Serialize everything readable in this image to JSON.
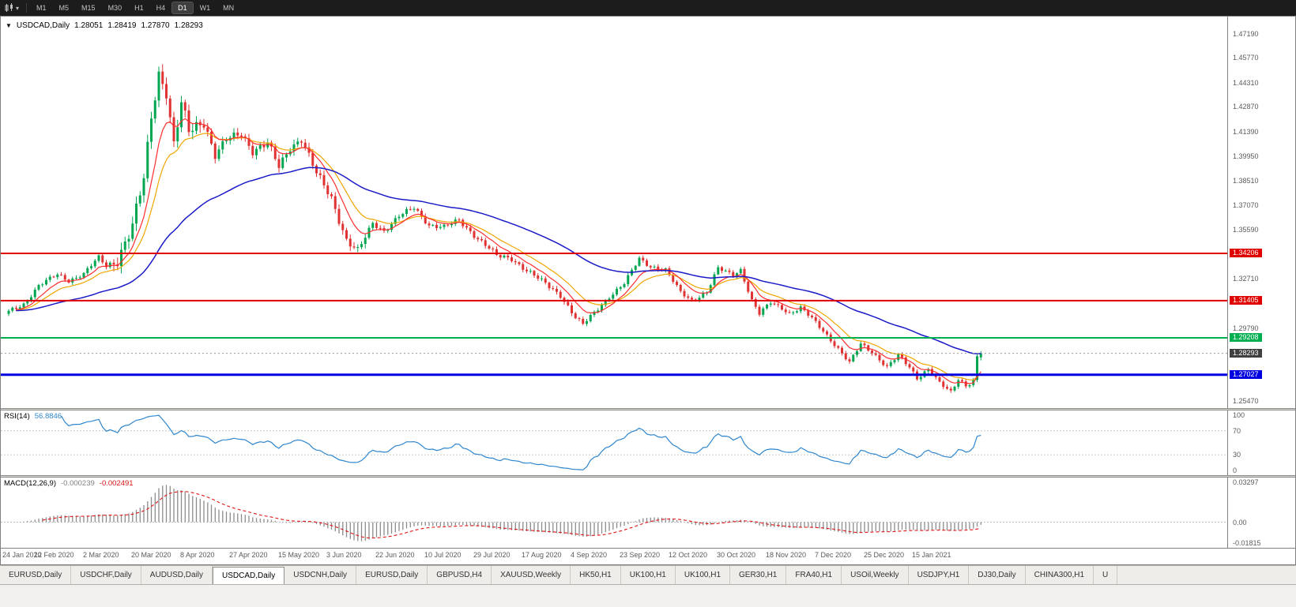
{
  "toolbar": {
    "timeframes": [
      "M1",
      "M5",
      "M15",
      "M30",
      "H1",
      "H4",
      "D1",
      "W1",
      "MN"
    ],
    "active_timeframe": "D1"
  },
  "chart_data": {
    "type": "candlestick",
    "title": "USDCAD,Daily",
    "ohlc_display": {
      "open": "1.28051",
      "high": "1.28419",
      "low": "1.27870",
      "close": "1.28293"
    },
    "last_candle": {
      "open": 1.28051,
      "high": 1.28419,
      "low": 1.2787,
      "close": 1.28293
    },
    "bars": 260,
    "bars_per_x_label": 13,
    "up_color": "#00A650",
    "down_color": "#E03232",
    "ma_lines": [
      {
        "name": "ma-fast",
        "color": "#FF2D2D"
      },
      {
        "name": "ma-mid",
        "color": "#EFA600"
      },
      {
        "name": "ma-slow",
        "color": "#1A1AC8"
      }
    ],
    "price_axis": {
      "top_tick": 1.4719,
      "bottom_tick": 1.2547,
      "ticks": [
        "1.47190",
        "1.45770",
        "1.44310",
        "1.42870",
        "1.41390",
        "1.39950",
        "1.38510",
        "1.37070",
        "1.35590",
        "1.32710",
        "1.29790",
        "1.25470"
      ]
    },
    "horizontal_lines": [
      {
        "label": "1.34206",
        "value": 1.34206,
        "color": "#E00000",
        "width": 2
      },
      {
        "label": "1.31405",
        "value": 1.31405,
        "color": "#E00000",
        "width": 2
      },
      {
        "label": "1.29208",
        "value": 1.29208,
        "color": "#00B050",
        "width": 2
      },
      {
        "label": "1.27027",
        "value": 1.27027,
        "color": "#0000E0",
        "width": 3
      }
    ],
    "current_price": {
      "label": "1.28293",
      "value": 1.28293,
      "tag_color": "#3F3F3F"
    },
    "x_axis_labels": [
      "24 Jan 2020",
      "12 Feb 2020",
      "2 Mar 2020",
      "20 Mar 2020",
      "8 Apr 2020",
      "27 Apr 2020",
      "15 May 2020",
      "3 Jun 2020",
      "22 Jun 2020",
      "10 Jul 2020",
      "29 Jul 2020",
      "17 Aug 2020",
      "4 Sep 2020",
      "23 Sep 2020",
      "12 Oct 2020",
      "30 Oct 2020",
      "18 Nov 2020",
      "7 Dec 2020",
      "25 Dec 2020",
      "15 Jan 2021"
    ],
    "price_path": [
      [
        0,
        1.3075
      ],
      [
        4,
        1.312
      ],
      [
        8,
        1.323
      ],
      [
        13,
        1.3295
      ],
      [
        16,
        1.326
      ],
      [
        20,
        1.33
      ],
      [
        24,
        1.3395
      ],
      [
        26,
        1.3345
      ],
      [
        29,
        1.339
      ],
      [
        33,
        1.358
      ],
      [
        36,
        1.386
      ],
      [
        38,
        1.423
      ],
      [
        40,
        1.449
      ],
      [
        42,
        1.438
      ],
      [
        44,
        1.406
      ],
      [
        46,
        1.43
      ],
      [
        48,
        1.414
      ],
      [
        52,
        1.421
      ],
      [
        55,
        1.4
      ],
      [
        58,
        1.409
      ],
      [
        62,
        1.413
      ],
      [
        65,
        1.403
      ],
      [
        69,
        1.407
      ],
      [
        72,
        1.393
      ],
      [
        75,
        1.405
      ],
      [
        78,
        1.41
      ],
      [
        82,
        1.389
      ],
      [
        86,
        1.375
      ],
      [
        90,
        1.35
      ],
      [
        93,
        1.343
      ],
      [
        97,
        1.36
      ],
      [
        100,
        1.3555
      ],
      [
        104,
        1.364
      ],
      [
        108,
        1.369
      ],
      [
        112,
        1.359
      ],
      [
        116,
        1.3575
      ],
      [
        120,
        1.3615
      ],
      [
        124,
        1.353
      ],
      [
        128,
        1.345
      ],
      [
        130,
        1.3405
      ],
      [
        134,
        1.339
      ],
      [
        138,
        1.332
      ],
      [
        143,
        1.324
      ],
      [
        147,
        1.3175
      ],
      [
        151,
        1.304
      ],
      [
        153,
        1.2998
      ],
      [
        156,
        1.307
      ],
      [
        160,
        1.3165
      ],
      [
        164,
        1.324
      ],
      [
        168,
        1.339
      ],
      [
        171,
        1.3345
      ],
      [
        175,
        1.332
      ],
      [
        179,
        1.319
      ],
      [
        182,
        1.3145
      ],
      [
        186,
        1.319
      ],
      [
        189,
        1.333
      ],
      [
        193,
        1.3295
      ],
      [
        195,
        1.3325
      ],
      [
        198,
        1.314
      ],
      [
        200,
        1.306
      ],
      [
        203,
        1.313
      ],
      [
        206,
        1.31
      ],
      [
        208,
        1.3065
      ],
      [
        211,
        1.3095
      ],
      [
        214,
        1.3035
      ],
      [
        217,
        1.2965
      ],
      [
        221,
        1.2855
      ],
      [
        224,
        1.277
      ],
      [
        227,
        1.2885
      ],
      [
        230,
        1.284
      ],
      [
        234,
        1.2745
      ],
      [
        237,
        1.2815
      ],
      [
        240,
        1.275
      ],
      [
        242,
        1.2685
      ],
      [
        245,
        1.2735
      ],
      [
        248,
        1.265
      ],
      [
        251,
        1.26
      ],
      [
        253,
        1.268
      ],
      [
        255,
        1.264
      ],
      [
        257,
        1.2665
      ],
      [
        258,
        1.2805
      ],
      [
        259,
        1.28293
      ]
    ],
    "indicators": {
      "rsi": {
        "label": "RSI(14)",
        "value": "56.8846",
        "line_color": "#2E86CF",
        "axis_ticks": [
          "100",
          "70",
          "30",
          "0"
        ],
        "upper_level": 70,
        "lower_level": 30
      },
      "macd": {
        "label": "MACD(12,26,9)",
        "main_value": "-0.000239",
        "signal_value": "-0.002491",
        "axis_ticks": [
          "0.03297",
          "0.00",
          "-0.01815"
        ],
        "scale_top": 0.03297,
        "scale_bottom": -0.01815,
        "histogram_color": "#8C8C8C",
        "signal_color": "#E01414"
      }
    }
  },
  "tabs": {
    "items": [
      "EURUSD,Daily",
      "USDCHF,Daily",
      "AUDUSD,Daily",
      "USDCAD,Daily",
      "USDCNH,Daily",
      "EURUSD,Daily",
      "GBPUSD,H4",
      "XAUUSD,Weekly",
      "HK50,H1",
      "UK100,H1",
      "UK100,H1",
      "GER30,H1",
      "FRA40,H1",
      "USOil,Weekly",
      "USDJPY,H1",
      "DJ30,Daily",
      "CHINA300,H1",
      "U"
    ],
    "active_index": 3
  }
}
